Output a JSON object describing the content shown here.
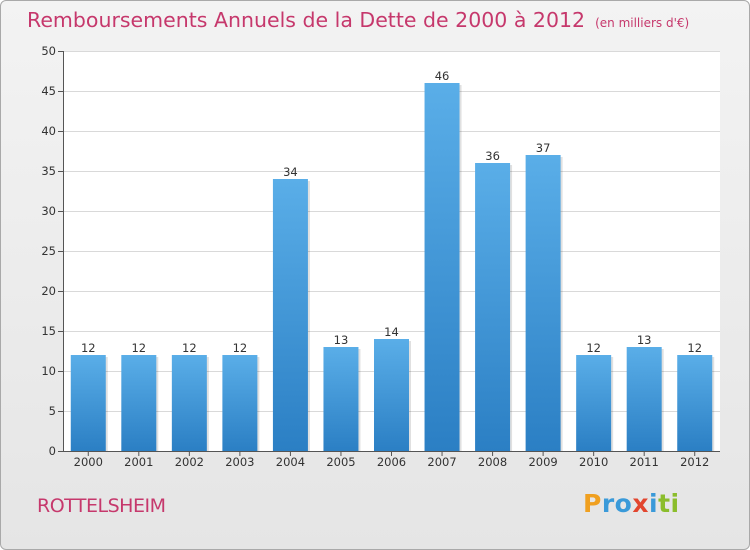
{
  "chart_data": {
    "type": "bar",
    "title": "Remboursements Annuels de la Dette de 2000 à 2012",
    "subtitle": "(en milliers d'€)",
    "categories": [
      "2000",
      "2001",
      "2002",
      "2003",
      "2004",
      "2005",
      "2006",
      "2007",
      "2008",
      "2009",
      "2010",
      "2011",
      "2012"
    ],
    "values": [
      12,
      12,
      12,
      12,
      34,
      13,
      14,
      46,
      36,
      37,
      12,
      13,
      12
    ],
    "ylim": [
      0,
      50
    ],
    "yticks": [
      0,
      5,
      10,
      15,
      20,
      25,
      30,
      35,
      40,
      45,
      50
    ],
    "xlabel": "",
    "ylabel": "",
    "grid": true,
    "bar_color": "#3d94d8",
    "title_color": "#c6386c"
  },
  "footer": {
    "town": "ROTTELSHEIM",
    "logo_letters": [
      "P",
      "r",
      "o",
      "x",
      "i",
      "t",
      "i"
    ],
    "logo_colors": [
      "#f0a020",
      "#3a9ad9",
      "#3a9ad9",
      "#e2462f",
      "#3a9ad9",
      "#8bbd2c",
      "#8bbd2c"
    ]
  }
}
